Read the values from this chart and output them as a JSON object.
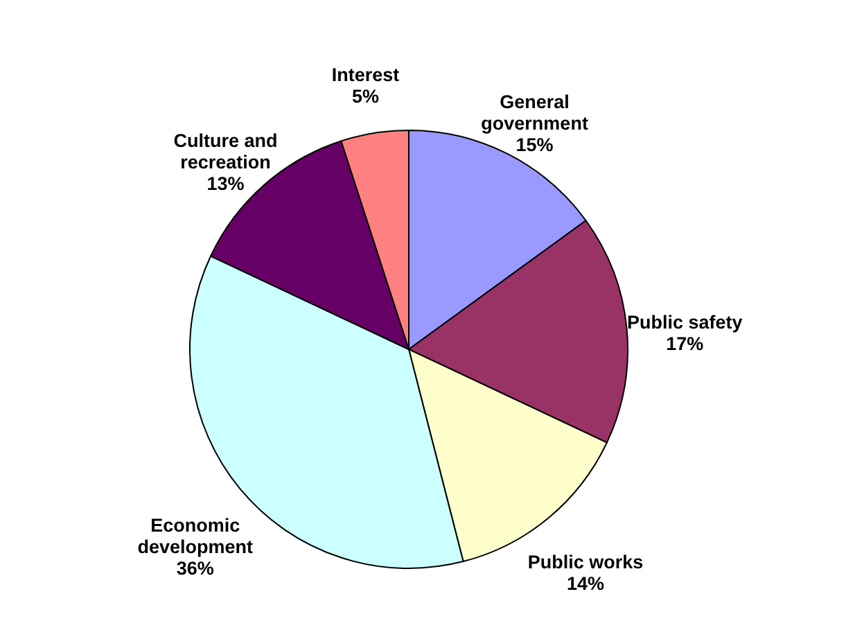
{
  "chart_data": {
    "type": "pie",
    "categories": [
      "General government",
      "Public safety",
      "Public works",
      "Economic development",
      "Culture and recreation",
      "Interest"
    ],
    "values": [
      15,
      17,
      14,
      36,
      13,
      5
    ],
    "colors": [
      "#9999ff",
      "#993366",
      "#ffffcc",
      "#ccffff",
      "#660066",
      "#ff8080"
    ],
    "value_labels": [
      "15%",
      "17%",
      "14%",
      "36%",
      "13%",
      "5%"
    ]
  }
}
